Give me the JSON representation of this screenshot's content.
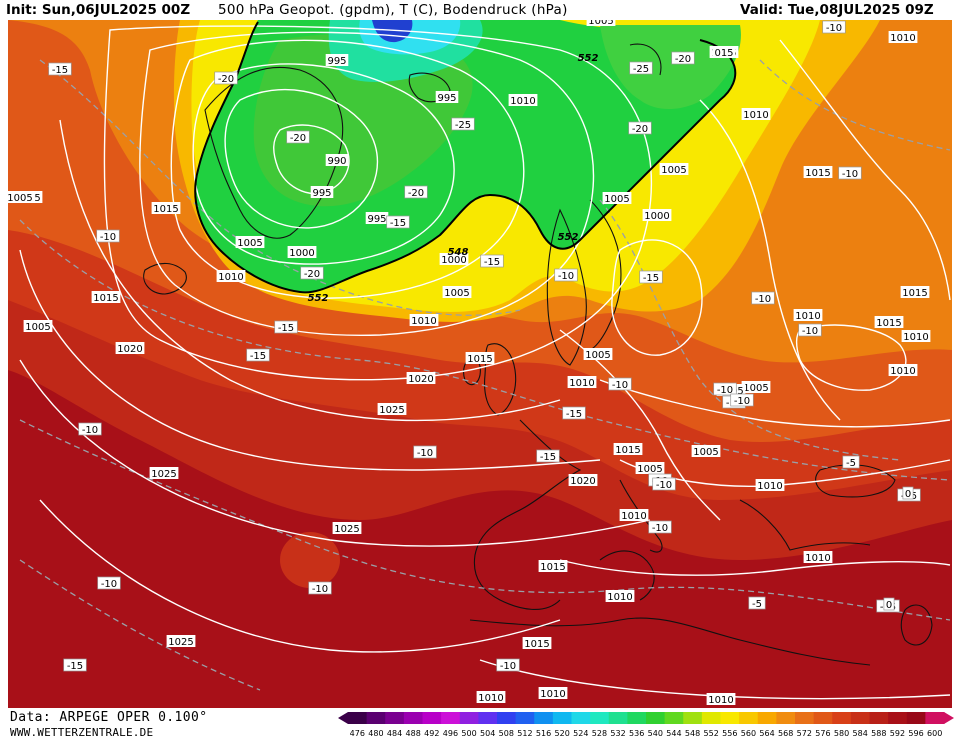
{
  "header": {
    "init": "Init: Sun,06JUL2025 00Z",
    "title": "500 hPa Geopot. (gpdm), T (C), Bodendruck (hPa)",
    "valid": "Valid: Tue,08JUL2025 09Z"
  },
  "footer": {
    "data_source": "Data: ARPEGE OPER 0.100°",
    "website": "WWW.WETTERZENTRALE.DE"
  },
  "colors": {
    "background_high": "#a01010",
    "green_low": "#20d040",
    "accent_cyan": "#30e0f0",
    "isobar": "#ffffff",
    "coast": "#111111"
  },
  "scale": {
    "values": [
      "476",
      "480",
      "484",
      "488",
      "492",
      "496",
      "500",
      "504",
      "508",
      "512",
      "516",
      "520",
      "524",
      "528",
      "532",
      "536",
      "540",
      "544",
      "548",
      "552",
      "556",
      "560",
      "564",
      "568",
      "572",
      "576",
      "580",
      "584",
      "588",
      "592",
      "596",
      "600"
    ],
    "colors": [
      "#3a0048",
      "#5a0070",
      "#7a0090",
      "#9a00b0",
      "#b800c8",
      "#cc10d8",
      "#9020e0",
      "#6030f0",
      "#3040f0",
      "#2060f0",
      "#1090f0",
      "#10b8f0",
      "#20d8e8",
      "#20e8c0",
      "#20e090",
      "#20d860",
      "#30d030",
      "#60d820",
      "#a0e010",
      "#e0e800",
      "#f8e800",
      "#f8c800",
      "#f8a800",
      "#f08c10",
      "#e87018",
      "#e05818",
      "#d84018",
      "#c83018",
      "#b82018",
      "#a81018",
      "#980818",
      "#d01060"
    ]
  },
  "isobar_labels": [
    {
      "text": "1005",
      "name": "isobar-label-1005-top"
    },
    {
      "text": "1010",
      "name": "isobar-label-1010-ne"
    },
    {
      "text": "1005",
      "name": "isobar-label-1005-nc"
    },
    {
      "text": "1010",
      "name": "isobar-label-1010-nc"
    },
    {
      "text": "995",
      "name": "isobar-label-995-a"
    },
    {
      "text": "995",
      "name": "isobar-label-995-b"
    },
    {
      "text": "990",
      "name": "isobar-label-990"
    },
    {
      "text": "995",
      "name": "isobar-label-995-c"
    },
    {
      "text": "995",
      "name": "isobar-label-995-d"
    },
    {
      "text": "1005",
      "name": "isobar-label-1005-w"
    },
    {
      "text": "1000",
      "name": "isobar-label-1000-w"
    },
    {
      "text": "1010",
      "name": "isobar-label-1010-w"
    },
    {
      "text": "1015",
      "name": "isobar-label-1015-w"
    },
    {
      "text": "1015",
      "name": "isobar-label-1015-w2"
    },
    {
      "text": "1020",
      "name": "isobar-label-1020-w"
    },
    {
      "text": "1015",
      "name": "isobar-label-1015-c"
    },
    {
      "text": "1020",
      "name": "isobar-label-1020-c"
    },
    {
      "text": "1025",
      "name": "isobar-label-1025-c"
    },
    {
      "text": "1025",
      "name": "isobar-label-1025-sw"
    },
    {
      "text": "1025",
      "name": "isobar-label-1025-s"
    },
    {
      "text": "1025",
      "name": "isobar-label-1025-ss"
    },
    {
      "text": "1000",
      "name": "isobar-label-1000-c"
    },
    {
      "text": "1005",
      "name": "isobar-label-1005-c"
    },
    {
      "text": "1010",
      "name": "isobar-label-1010-c"
    },
    {
      "text": "1015",
      "name": "isobar-label-1015-uk"
    },
    {
      "text": "1005",
      "name": "isobar-label-1005-e"
    },
    {
      "text": "1000",
      "name": "isobar-label-1000-e"
    },
    {
      "text": "1005",
      "name": "isobar-label-1005-e2"
    },
    {
      "text": "1005",
      "name": "isobar-label-1005-scan"
    },
    {
      "text": "1010",
      "name": "isobar-label-1010-scan"
    },
    {
      "text": "1010",
      "name": "isobar-label-1010-e"
    },
    {
      "text": "1015",
      "name": "isobar-label-1015-e"
    },
    {
      "text": "1005",
      "name": "isobar-label-1005-ee"
    },
    {
      "text": "1005",
      "name": "isobar-label-1005-ee2"
    },
    {
      "text": "1005",
      "name": "isobar-label-1005-cen"
    },
    {
      "text": "1015",
      "name": "isobar-label-1015-cen"
    },
    {
      "text": "1005",
      "name": "isobar-label-1005-alps"
    },
    {
      "text": "1010",
      "name": "isobar-label-1010-bal"
    },
    {
      "text": "1010",
      "name": "isobar-label-1010-ita"
    },
    {
      "text": "1020",
      "name": "isobar-label-1020-fr"
    },
    {
      "text": "1015",
      "name": "isobar-label-1015-sp"
    },
    {
      "text": "1010",
      "name": "isobar-label-1010-sp"
    },
    {
      "text": "1010",
      "name": "isobar-label-1010-gr"
    },
    {
      "text": "1015",
      "name": "isobar-label-1015-naf"
    },
    {
      "text": "1010",
      "name": "isobar-label-1010-naf"
    },
    {
      "text": "1010",
      "name": "isobar-label-1010-naf2"
    },
    {
      "text": "1010",
      "name": "isobar-label-1010-sah"
    },
    {
      "text": "1010",
      "name": "isobar-label-1010-ru"
    },
    {
      "text": "1015",
      "name": "isobar-label-1015-ru"
    },
    {
      "text": "1015",
      "name": "isobar-label-1015-ru2"
    },
    {
      "text": "1010",
      "name": "isobar-label-1010-ru2"
    },
    {
      "text": "1010",
      "name": "isobar-label-1010-ru3"
    },
    {
      "text": "1005",
      "name": "isobar-label-1005-ru"
    },
    {
      "text": "015",
      "name": "isobar-label-015-edge"
    },
    {
      "text": "1005",
      "name": "isobar-label-1005-ne2"
    }
  ],
  "temp_labels": [
    {
      "text": "-15",
      "name": "temp-label-a"
    },
    {
      "text": "-20",
      "name": "temp-label-b"
    },
    {
      "text": "-20",
      "name": "temp-label-c"
    },
    {
      "text": "-25",
      "name": "temp-label-d"
    },
    {
      "text": "-25",
      "name": "temp-label-e"
    },
    {
      "text": "-20",
      "name": "temp-label-f"
    },
    {
      "text": "-20",
      "name": "temp-label-g"
    },
    {
      "text": "-20",
      "name": "temp-label-h"
    },
    {
      "text": "-15",
      "name": "temp-label-i"
    },
    {
      "text": "-10",
      "name": "temp-label-j"
    },
    {
      "text": "-15",
      "name": "temp-label-k"
    },
    {
      "text": "-10",
      "name": "temp-label-l"
    },
    {
      "text": "-15",
      "name": "temp-label-m"
    },
    {
      "text": "-20",
      "name": "temp-label-n"
    },
    {
      "text": "-15",
      "name": "temp-label-o"
    },
    {
      "text": "-15",
      "name": "temp-label-p"
    },
    {
      "text": "-10",
      "name": "temp-label-q"
    },
    {
      "text": "-10",
      "name": "temp-label-r"
    },
    {
      "text": "-10",
      "name": "temp-label-s"
    },
    {
      "text": "-10",
      "name": "temp-label-t"
    },
    {
      "text": "-15",
      "name": "temp-label-u"
    },
    {
      "text": "-15",
      "name": "temp-label-v"
    },
    {
      "text": "-10",
      "name": "temp-label-w"
    },
    {
      "text": "-10",
      "name": "temp-label-x"
    },
    {
      "text": "-10",
      "name": "temp-label-y"
    },
    {
      "text": "-10",
      "name": "temp-label-z"
    },
    {
      "text": "-15",
      "name": "temp-label-aa"
    },
    {
      "text": "-10",
      "name": "temp-label-ab"
    },
    {
      "text": "-10",
      "name": "temp-label-ac"
    },
    {
      "text": "-10",
      "name": "temp-label-ad"
    },
    {
      "text": "-10",
      "name": "temp-label-ae"
    },
    {
      "text": "-5",
      "name": "temp-label-af"
    },
    {
      "text": "-5",
      "name": "temp-label-ag"
    },
    {
      "text": "-15",
      "name": "temp-label-ah"
    },
    {
      "text": "-15",
      "name": "temp-label-ai"
    },
    {
      "text": "-10",
      "name": "temp-label-aj"
    },
    {
      "text": "0",
      "name": "temp-label-ak"
    },
    {
      "text": "0",
      "name": "temp-label-al"
    },
    {
      "text": "-10",
      "name": "temp-label-am"
    },
    {
      "text": "-10",
      "name": "temp-label-an"
    },
    {
      "text": "-10",
      "name": "temp-label-ao"
    }
  ],
  "geopot_labels": [
    {
      "text": "552",
      "name": "geopot-label-552-a"
    },
    {
      "text": "552",
      "name": "geopot-label-552-b"
    },
    {
      "text": "552",
      "name": "geopot-label-552-c"
    },
    {
      "text": "548",
      "name": "geopot-label-548"
    }
  ]
}
